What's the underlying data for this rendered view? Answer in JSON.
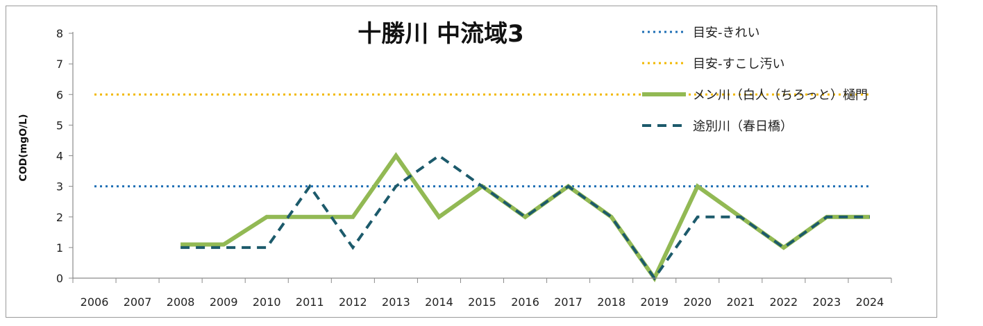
{
  "chart_data": {
    "type": "line",
    "title": "十勝川 中流域3",
    "ylabel": "COD(mgO/L)",
    "xlabel": "",
    "ylim": [
      0,
      8
    ],
    "yticks": [
      0,
      1,
      2,
      3,
      4,
      5,
      6,
      7,
      8
    ],
    "categories": [
      "2006",
      "2007",
      "2008",
      "2009",
      "2010",
      "2011",
      "2012",
      "2013",
      "2014",
      "2015",
      "2016",
      "2017",
      "2018",
      "2019",
      "2020",
      "2021",
      "2022",
      "2023",
      "2024"
    ],
    "grid": false,
    "legend_position": "top-right",
    "series": [
      {
        "name": "目安-きれい",
        "style": "dotted",
        "color": "#1f6fb5",
        "values": [
          3,
          3,
          3,
          3,
          3,
          3,
          3,
          3,
          3,
          3,
          3,
          3,
          3,
          3,
          3,
          3,
          3,
          3,
          3
        ]
      },
      {
        "name": "目安-すこし汚い",
        "style": "dotted",
        "color": "#f2b800",
        "values": [
          6,
          6,
          6,
          6,
          6,
          6,
          6,
          6,
          6,
          6,
          6,
          6,
          6,
          6,
          6,
          6,
          6,
          6,
          6
        ]
      },
      {
        "name": "メン川（白人（ちろっと）樋門",
        "style": "solid",
        "color": "#92b954",
        "values": [
          null,
          null,
          1.1,
          1.1,
          2,
          2,
          2,
          4,
          2,
          3,
          2,
          3,
          2,
          0,
          3,
          2,
          1,
          2,
          2
        ]
      },
      {
        "name": "途別川（春日橋）",
        "style": "dashed",
        "color": "#1c5a6b",
        "values": [
          null,
          null,
          1,
          1,
          1,
          3,
          1,
          3,
          4,
          3,
          2,
          3,
          2,
          0,
          2,
          2,
          1,
          2,
          2
        ]
      }
    ]
  }
}
